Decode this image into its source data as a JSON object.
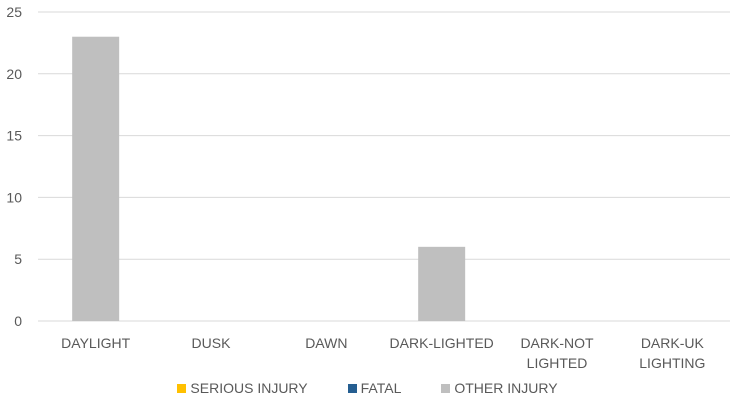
{
  "chart_data": {
    "type": "bar",
    "categories": [
      "DAYLIGHT",
      "DUSK",
      "DAWN",
      "DARK-LIGHTED",
      "DARK-NOT LIGHTED",
      "DARK-UK LIGHTING"
    ],
    "category_lines": [
      [
        "DAYLIGHT"
      ],
      [
        "DUSK"
      ],
      [
        "DAWN"
      ],
      [
        "DARK-LIGHTED"
      ],
      [
        "DARK-NOT",
        "LIGHTED"
      ],
      [
        "DARK-UK",
        "LIGHTING"
      ]
    ],
    "series": [
      {
        "name": "SERIOUS INJURY",
        "color": "#FFC000",
        "values": [
          0,
          0,
          0,
          0,
          0,
          0
        ]
      },
      {
        "name": "FATAL",
        "color": "#255E91",
        "values": [
          0,
          0,
          0,
          0,
          0,
          0
        ]
      },
      {
        "name": "OTHER INJURY",
        "color": "#BFBFBF",
        "values": [
          23,
          0,
          0,
          6,
          0,
          0
        ]
      }
    ],
    "ylim": [
      0,
      25
    ],
    "yticks": [
      0,
      5,
      10,
      15,
      20,
      25
    ],
    "grid": true,
    "legend_position": "bottom",
    "title": "",
    "xlabel": "",
    "ylabel": ""
  }
}
